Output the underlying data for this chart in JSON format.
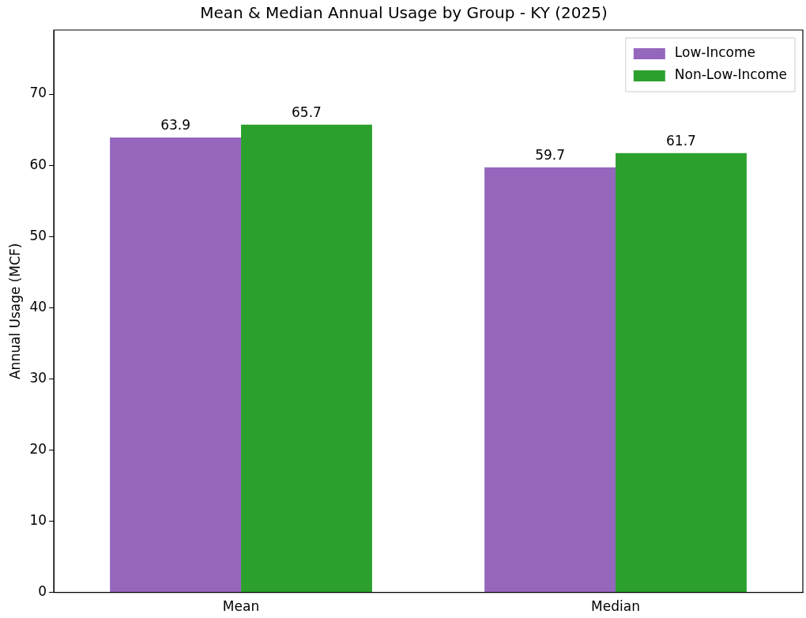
{
  "chart_data": {
    "type": "bar",
    "title": "Mean & Median Annual Usage by Group - KY (2025)",
    "ylabel": "Annual Usage (MCF)",
    "categories": [
      "Mean",
      "Median"
    ],
    "series": [
      {
        "name": "Low-Income",
        "color": "#9467bd",
        "values": [
          63.9,
          59.7
        ]
      },
      {
        "name": "Non-Low-Income",
        "color": "#2ca02c",
        "values": [
          65.7,
          61.7
        ]
      }
    ],
    "ylim": [
      0,
      79
    ],
    "yticks": [
      0,
      10,
      20,
      30,
      40,
      50,
      60,
      70
    ],
    "data_labels": true,
    "legend": "top right",
    "grid": false
  }
}
